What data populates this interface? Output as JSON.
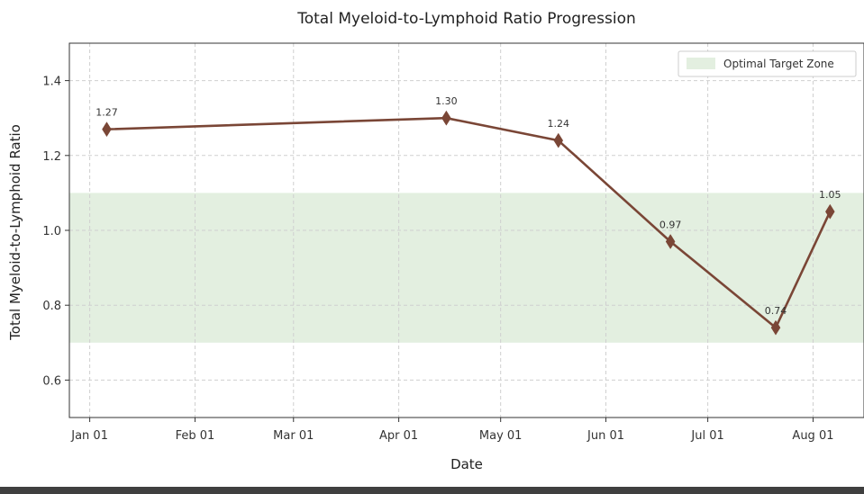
{
  "chart_data": {
    "type": "line",
    "title": "Total Myeloid-to-Lymphoid Ratio Progression",
    "xlabel": "Date",
    "ylabel": "Total Myeloid-to-Lymphoid Ratio",
    "x_ticks": [
      "Jan 01",
      "Feb 01",
      "Mar 01",
      "Apr 01",
      "May 01",
      "Jun 01",
      "Jul 01",
      "Aug 01"
    ],
    "x_tick_dates": [
      "2024-01-01",
      "2024-02-01",
      "2024-03-01",
      "2024-04-01",
      "2024-05-01",
      "2024-06-01",
      "2024-07-01",
      "2024-08-01"
    ],
    "y_ticks": [
      "0.6",
      "0.8",
      "1.0",
      "1.2",
      "1.4"
    ],
    "y_tick_values": [
      0.6,
      0.8,
      1.0,
      1.2,
      1.4
    ],
    "xlim": [
      "2023-12-26",
      "2024-08-16"
    ],
    "ylim": [
      0.5,
      1.5
    ],
    "grid": true,
    "series": [
      {
        "x": [
          "2024-01-06",
          "2024-04-15",
          "2024-05-18",
          "2024-06-20",
          "2024-07-21",
          "2024-08-06"
        ],
        "values": [
          1.27,
          1.3,
          1.24,
          0.97,
          0.74,
          1.05
        ],
        "labels": [
          "1.27",
          "1.30",
          "1.24",
          "0.97",
          "0.74",
          "1.05"
        ],
        "color": "#7a4636",
        "marker": "diamond"
      }
    ],
    "bands": [
      {
        "name": "Optimal Target Zone",
        "y_range": [
          0.7,
          1.1
        ],
        "color": "#e3efe0"
      }
    ],
    "legend": {
      "position": "top-right",
      "entries": [
        "Optimal Target Zone"
      ]
    }
  }
}
